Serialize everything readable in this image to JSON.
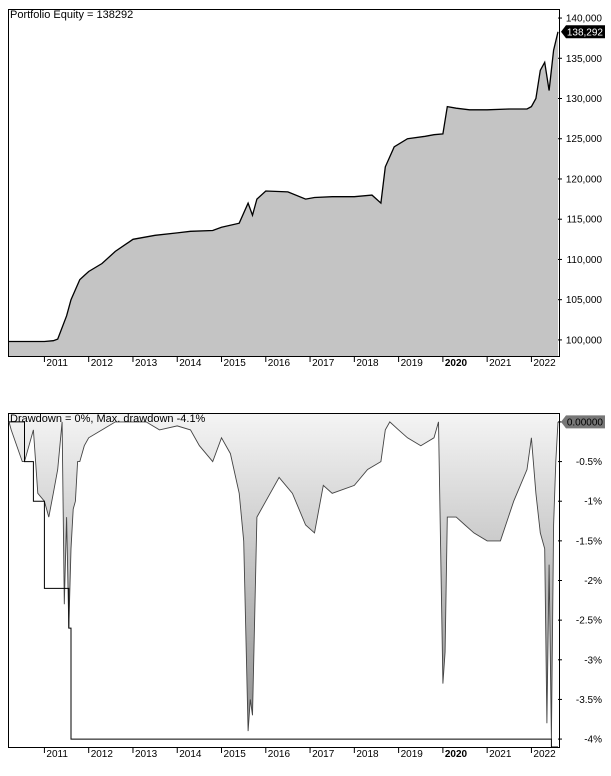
{
  "charts": {
    "equity": {
      "title": "Portfolio Equity = 138292",
      "last_value_label": "138,292",
      "colors": {
        "fill": "#c4c4c4",
        "line": "#000000",
        "badge": "#000000",
        "badge_text": "#ffffff"
      }
    },
    "drawdown": {
      "title": "Drawdown = 0%, Max. drawdown -4.1%",
      "last_value_label": "0.00000",
      "colors": {
        "fill_top": "#f4f4f4",
        "fill_bottom": "#8c8c8c",
        "line": "#000000",
        "badge": "#777777",
        "badge_text": "#000000"
      }
    }
  },
  "chart_data": [
    {
      "type": "area",
      "title": "Portfolio Equity = 138292",
      "x_domain": [
        2010.2,
        2022.6
      ],
      "ylim": [
        98000,
        141000
      ],
      "y_ticks": [
        100000,
        105000,
        110000,
        115000,
        120000,
        125000,
        130000,
        135000,
        140000
      ],
      "y_tick_labels": [
        "100,000",
        "105,000",
        "110,000",
        "115,000",
        "120,000",
        "125,000",
        "130,000",
        "135,000",
        "140,000"
      ],
      "x_ticks": [
        2011,
        2012,
        2013,
        2014,
        2015,
        2016,
        2017,
        2018,
        2019,
        2020,
        2021,
        2022
      ],
      "x_tick_labels": [
        "2011",
        "2012",
        "2013",
        "2014",
        "2015",
        "2016",
        "2017",
        "2018",
        "2019",
        "2020",
        "2021",
        "2022"
      ],
      "bold_ticks": [
        "2020"
      ],
      "series": [
        {
          "x": [
            2010.2,
            2010.9,
            2011.0,
            2011.2,
            2011.3,
            2011.5,
            2011.6,
            2011.8,
            2011.9,
            2012.0,
            2012.3,
            2012.6,
            2013.0,
            2013.5,
            2014.0,
            2014.3,
            2014.8,
            2015.0,
            2015.4,
            2015.6,
            2015.7,
            2015.8,
            2016.0,
            2016.5,
            2016.9,
            2017.1,
            2017.5,
            2018.0,
            2018.4,
            2018.6,
            2018.7,
            2018.9,
            2019.2,
            2019.6,
            2019.8,
            2020.0,
            2020.1,
            2020.3,
            2020.6,
            2021.0,
            2021.5,
            2021.9,
            2022.0,
            2022.1,
            2022.2,
            2022.3,
            2022.4,
            2022.5,
            2022.6
          ],
          "y": [
            99800,
            99800,
            99800,
            99900,
            100100,
            103000,
            105000,
            107500,
            108000,
            108500,
            109500,
            111000,
            112500,
            113000,
            113300,
            113500,
            113600,
            114000,
            114500,
            117000,
            115500,
            117500,
            118500,
            118400,
            117500,
            117700,
            117800,
            117800,
            118000,
            117000,
            121500,
            124000,
            125000,
            125300,
            125500,
            125600,
            129000,
            128800,
            128600,
            128600,
            128700,
            128700,
            129000,
            130000,
            133500,
            134500,
            131000,
            136000,
            138292
          ]
        }
      ]
    },
    {
      "type": "area",
      "title": "Drawdown = 0%, Max. drawdown -4.1%",
      "x_domain": [
        2010.2,
        2022.6
      ],
      "ylim": [
        -4.1,
        0.1
      ],
      "y_ticks": [
        0,
        -0.5,
        -1,
        -1.5,
        -2,
        -2.5,
        -3,
        -3.5,
        -4
      ],
      "y_tick_labels": [
        "0.00000",
        "-0.5%",
        "-1%",
        "-1.5%",
        "-2%",
        "-2.5%",
        "-3%",
        "-3.5%",
        "-4%"
      ],
      "x_ticks": [
        2011,
        2012,
        2013,
        2014,
        2015,
        2016,
        2017,
        2018,
        2019,
        2020,
        2021,
        2022
      ],
      "x_tick_labels": [
        "2011",
        "2012",
        "2013",
        "2014",
        "2015",
        "2016",
        "2017",
        "2018",
        "2019",
        "2020",
        "2021",
        "2022"
      ],
      "bold_ticks": [
        "2020"
      ],
      "series": [
        {
          "x": [
            2010.2,
            2010.25,
            2010.5,
            2010.55,
            2010.75,
            2010.8,
            2010.85,
            2011.0,
            2011.1,
            2011.2,
            2011.3,
            2011.4,
            2011.45,
            2011.5,
            2011.55,
            2011.6,
            2011.65,
            2011.7,
            2011.75,
            2011.8,
            2011.9,
            2012.0,
            2012.3,
            2012.6,
            2013.0,
            2013.3,
            2013.6,
            2014.0,
            2014.3,
            2014.5,
            2014.8,
            2015.0,
            2015.2,
            2015.4,
            2015.5,
            2015.6,
            2015.65,
            2015.7,
            2015.8,
            2016.0,
            2016.3,
            2016.6,
            2016.9,
            2017.1,
            2017.3,
            2017.5,
            2018.0,
            2018.3,
            2018.6,
            2018.7,
            2018.8,
            2019.0,
            2019.2,
            2019.5,
            2019.8,
            2019.9,
            2020.0,
            2020.05,
            2020.1,
            2020.3,
            2020.5,
            2020.7,
            2021.0,
            2021.3,
            2021.6,
            2021.9,
            2022.0,
            2022.1,
            2022.2,
            2022.3,
            2022.35,
            2022.4,
            2022.45,
            2022.5,
            2022.55,
            2022.6
          ],
          "y": [
            0,
            -0.1,
            -0.5,
            -0.5,
            -0.1,
            -0.5,
            -0.9,
            -1.0,
            -1.2,
            -0.9,
            -0.6,
            0,
            -2.3,
            -1.2,
            -2.6,
            -1.6,
            -1.1,
            -1.0,
            -0.5,
            -0.5,
            -0.3,
            -0.2,
            -0.1,
            0,
            0,
            0,
            -0.1,
            -0.05,
            -0.1,
            -0.3,
            -0.5,
            -0.2,
            -0.4,
            -0.9,
            -1.5,
            -3.9,
            -3.5,
            -3.7,
            -1.2,
            -1.0,
            -0.7,
            -0.9,
            -1.3,
            -1.4,
            -0.8,
            -0.9,
            -0.8,
            -0.6,
            -0.5,
            -0.1,
            0,
            -0.1,
            -0.2,
            -0.3,
            -0.2,
            0,
            -3.3,
            -2.9,
            -1.2,
            -1.2,
            -1.3,
            -1.4,
            -1.5,
            -1.5,
            -1.0,
            -0.6,
            -0.2,
            -0.9,
            -1.4,
            -1.6,
            -3.8,
            -1.8,
            -4.0,
            -1.3,
            -0.5,
            0
          ]
        }
      ],
      "max_drawdown_envelope": {
        "x": [
          2010.2,
          2010.55,
          2010.75,
          2011.0,
          2011.45,
          2011.55,
          2011.6,
          2015.6,
          2022.3,
          2022.45,
          2022.6
        ],
        "y": [
          0,
          -0.5,
          -1.0,
          -2.1,
          -2.1,
          -2.6,
          -4.0,
          -4.0,
          -4.0,
          -4.1,
          -4.1
        ]
      }
    }
  ]
}
